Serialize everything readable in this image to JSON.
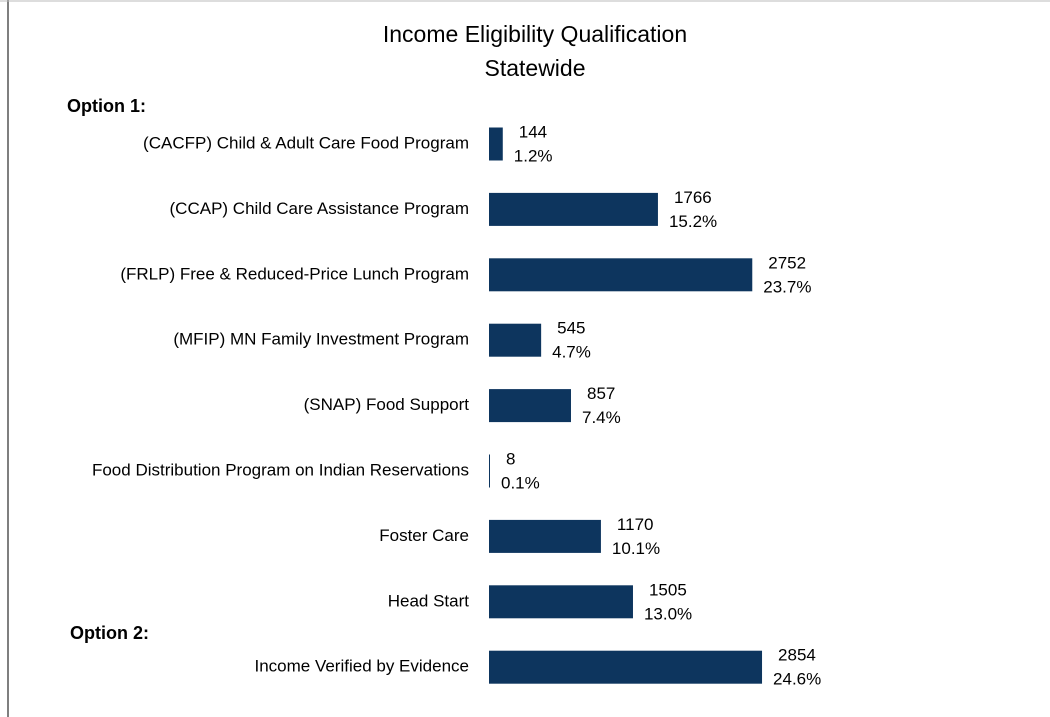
{
  "chart_data": {
    "type": "hbar",
    "title": "Income Eligibility Qualification",
    "subtitle": "Statewide",
    "annotations": [
      "Option 1:",
      "Option 2:"
    ],
    "categories": [
      "(CACFP) Child & Adult Care Food Program",
      "(CCAP) Child Care Assistance Program",
      "(FRLP) Free & Reduced-Price Lunch Program",
      "(MFIP) MN Family Investment Program",
      "(SNAP) Food Support",
      "Food Distribution Program on Indian Reservations",
      "Foster Care",
      "Head Start",
      "Income Verified by Evidence"
    ],
    "values": [
      144,
      1766,
      2752,
      545,
      857,
      8,
      1170,
      1505,
      2854
    ],
    "share_labels": [
      "1.2%",
      "15.2%",
      "23.7%",
      "4.7%",
      "7.4%",
      "0.1%",
      "10.1%",
      "13.0%",
      "24.6%"
    ],
    "color": "#0d355e",
    "xlim": [
      0,
      3000
    ]
  }
}
